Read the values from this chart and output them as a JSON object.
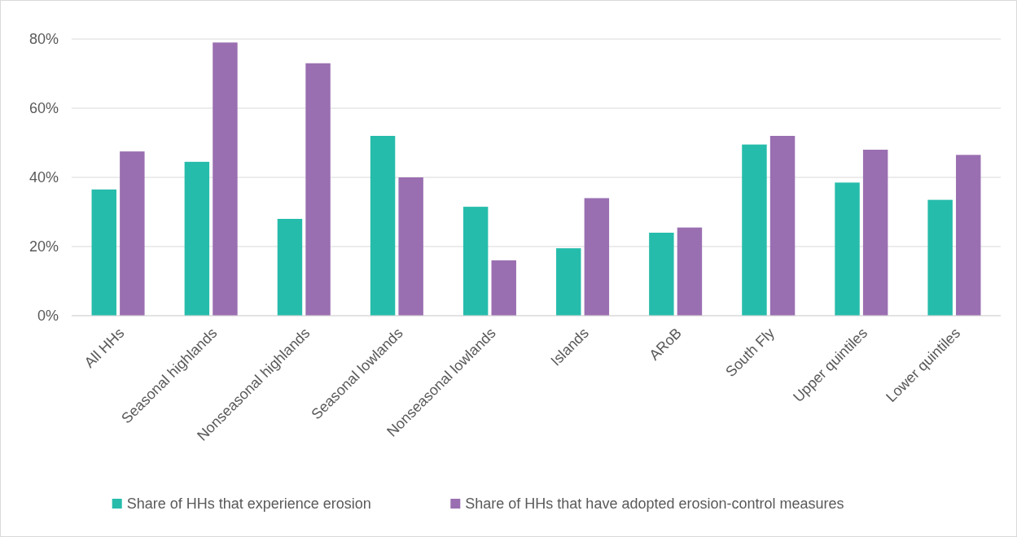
{
  "chart_data": {
    "type": "bar",
    "categories": [
      "All HHs",
      "Seasonal highlands",
      "Nonseasonal highlands",
      "Seasonal lowlands",
      "Nonseasonal lowlands",
      "Islands",
      "ARoB",
      "South Fly",
      "Upper quintiles",
      "Lower quintiles"
    ],
    "series": [
      {
        "name": "Share of HHs that experience erosion",
        "color": "#26bcab",
        "values": [
          36.5,
          44.5,
          28,
          52,
          31.5,
          19.5,
          24,
          49.5,
          38.5,
          33.5
        ]
      },
      {
        "name": "Share of HHs that have adopted erosion-control measures",
        "color": "#9a6fb1",
        "values": [
          47.5,
          79,
          73,
          40,
          16,
          34,
          25.5,
          52,
          48,
          46.5
        ]
      }
    ],
    "ylim": [
      0,
      80
    ],
    "yticks": [
      {
        "value": 0,
        "label": "0%"
      },
      {
        "value": 20,
        "label": "20%"
      },
      {
        "value": 40,
        "label": "40%"
      },
      {
        "value": 60,
        "label": "60%"
      },
      {
        "value": 80,
        "label": "80%"
      }
    ],
    "grid": "y",
    "legend": "bottom"
  }
}
